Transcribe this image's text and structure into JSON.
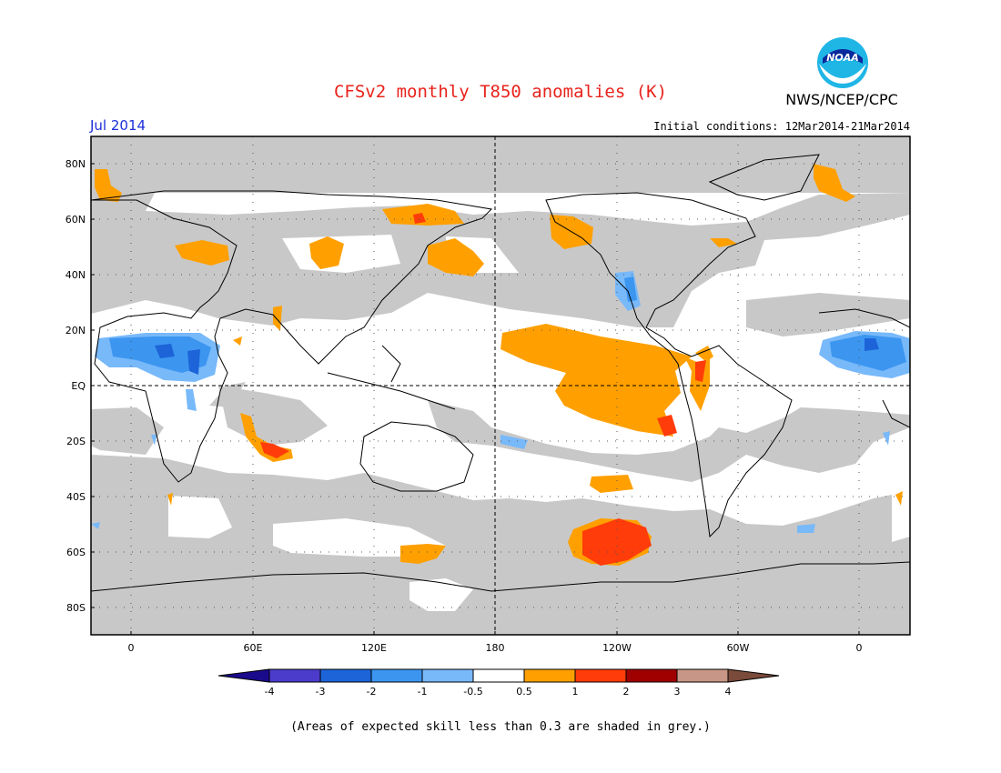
{
  "header": {
    "title": "CFSv2 monthly T850 anomalies (K)",
    "agency": "NWS/NCEP/CPC",
    "logo_text": "NOAA",
    "month": "Jul 2014",
    "initial_conditions": "Initial conditions: 12Mar2014-21Mar2014"
  },
  "map": {
    "lat_labels": [
      "80N",
      "60N",
      "40N",
      "20N",
      "EQ",
      "20S",
      "40S",
      "60S",
      "80S"
    ],
    "lon_labels": [
      "0",
      "60E",
      "120E",
      "180",
      "120W",
      "60W",
      "0"
    ],
    "skill_mask_color": "#c8c8c8"
  },
  "legend": {
    "tick_labels": [
      "-4",
      "-3",
      "-2",
      "-1",
      "-0.5",
      "0.5",
      "1",
      "2",
      "3",
      "4"
    ],
    "colors": [
      "#1a0a8c",
      "#4b3ccc",
      "#1c64d8",
      "#3c96f0",
      "#78b9fa",
      "#ffffff",
      "#ffa000",
      "#ff3c0a",
      "#a00000",
      "#c89686",
      "#7a4a3a"
    ]
  },
  "footnote": "(Areas of expected skill less than 0.3 are shaded in grey.)"
}
